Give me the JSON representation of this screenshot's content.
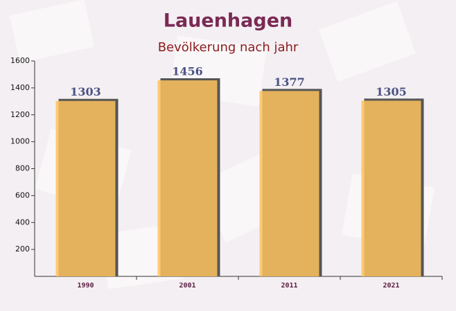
{
  "chart_data": {
    "type": "bar",
    "title": "Lauenhagen",
    "subtitle": "Bevölkerung nach jahr",
    "categories": [
      "1990",
      "2001",
      "2011",
      "2021"
    ],
    "values": [
      1303,
      1456,
      1377,
      1305
    ],
    "color": "#fec25e",
    "ylim": [
      0,
      1600
    ],
    "yticks": [
      200,
      400,
      600,
      800,
      1000,
      1200,
      1400,
      1600
    ]
  }
}
